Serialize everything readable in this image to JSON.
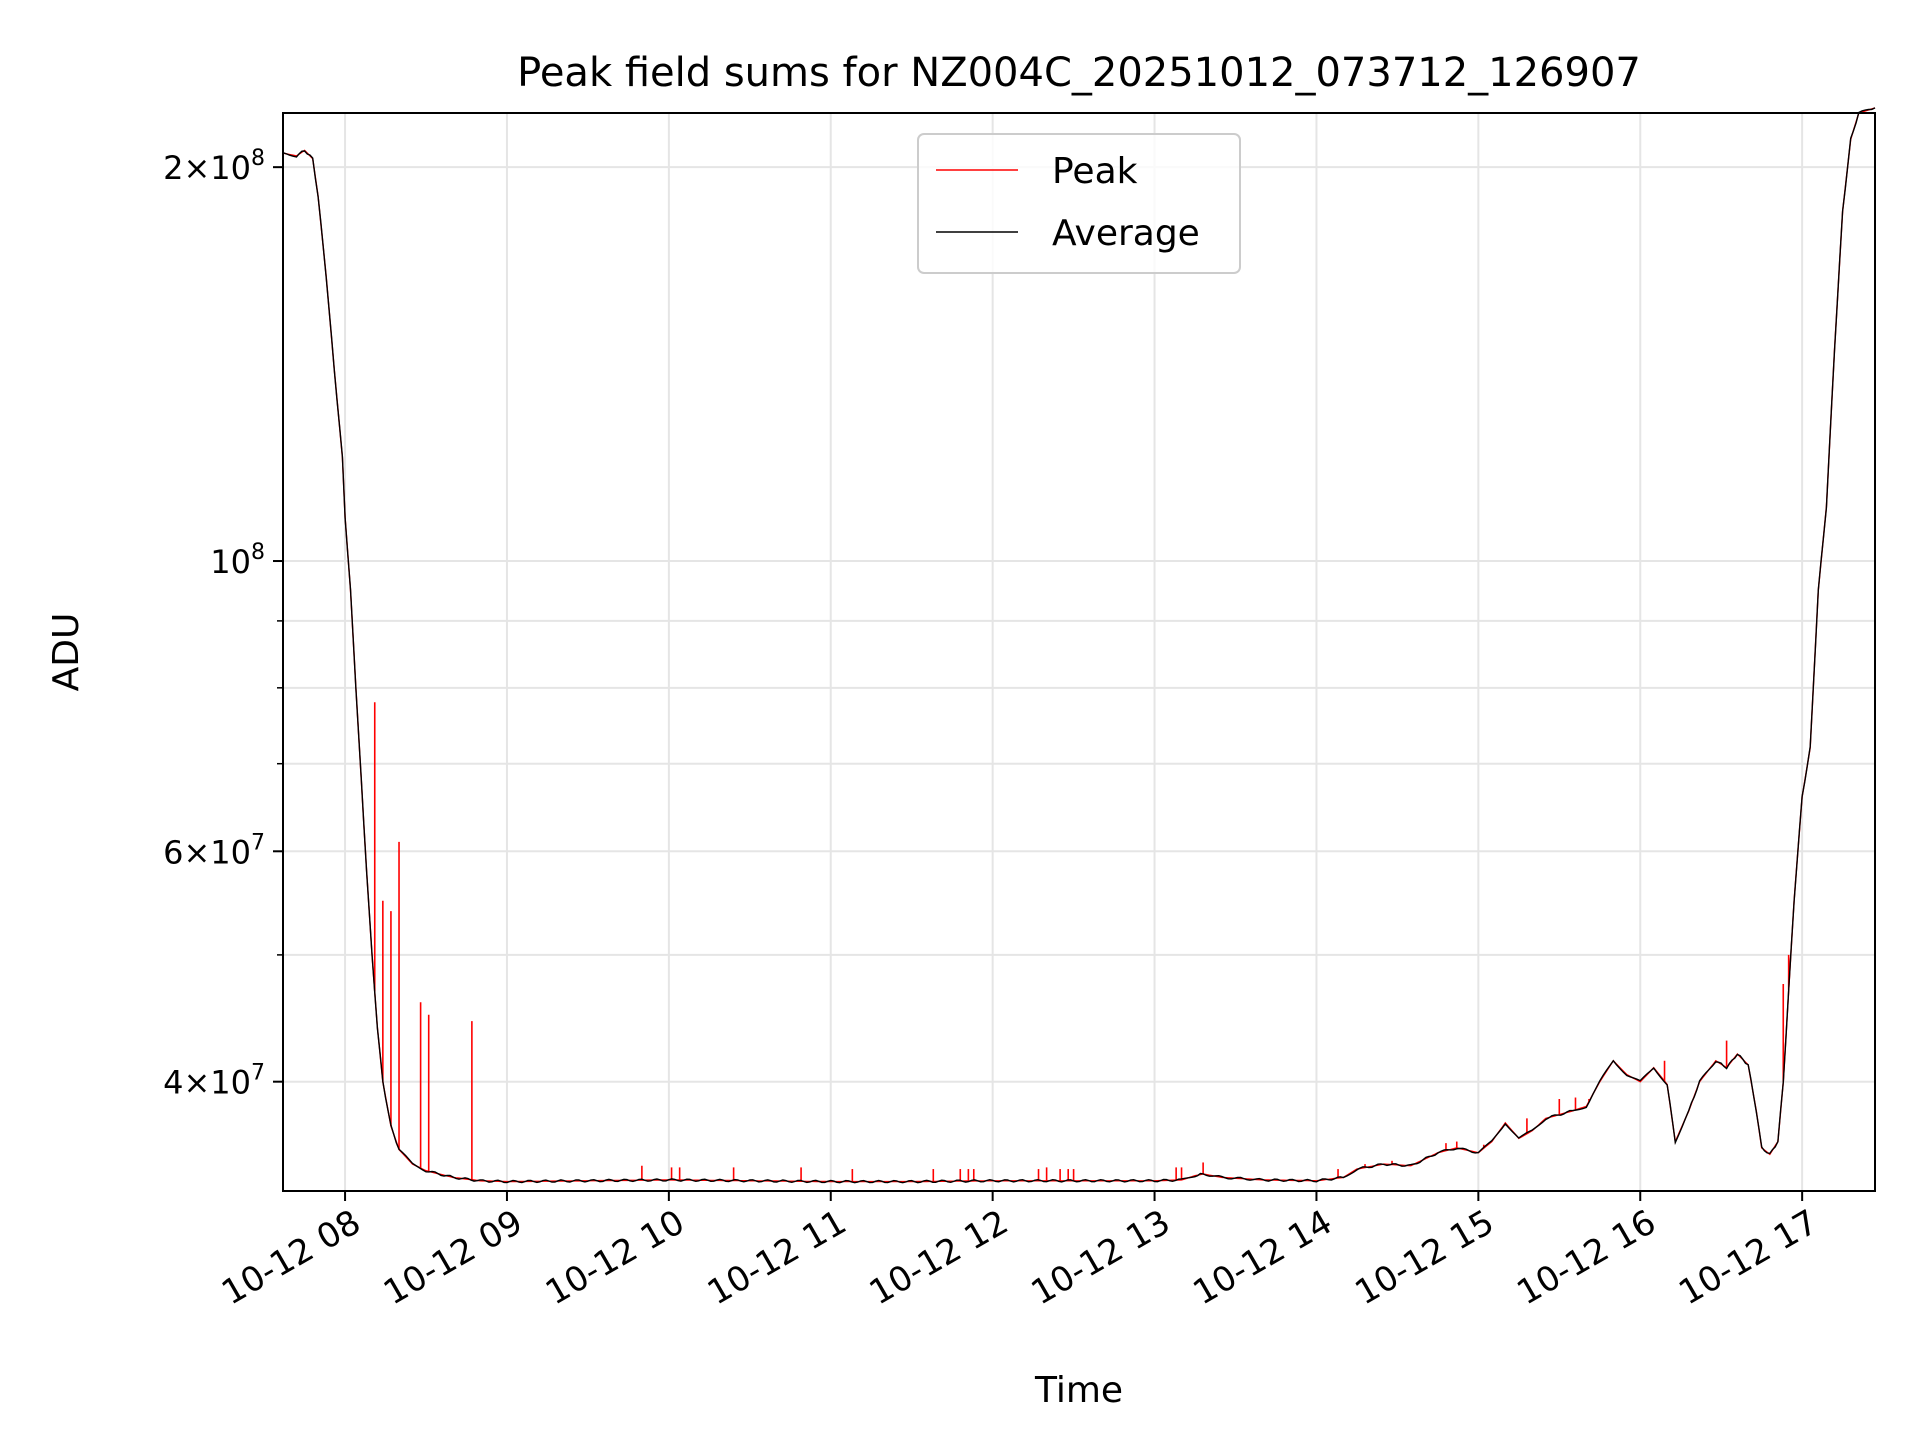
{
  "chart_data": {
    "type": "line",
    "title": "Peak field sums for NZ004C_20251012_073712_126907",
    "xlabel": "Time",
    "ylabel": "ADU",
    "yscale": "log",
    "xlim": [
      "2025-10-12 07:37",
      "2025-10-12 17:27"
    ],
    "ylim": [
      33000000,
      220000000
    ],
    "grid": true,
    "legend": {
      "placement": "upper center",
      "entries": [
        "Peak",
        "Average"
      ]
    },
    "x_ticks": [
      {
        "t": "2025-10-12 08:00",
        "label": "10-12 08"
      },
      {
        "t": "2025-10-12 09:00",
        "label": "10-12 09"
      },
      {
        "t": "2025-10-12 10:00",
        "label": "10-12 10"
      },
      {
        "t": "2025-10-12 11:00",
        "label": "10-12 11"
      },
      {
        "t": "2025-10-12 12:00",
        "label": "10-12 12"
      },
      {
        "t": "2025-10-12 13:00",
        "label": "10-12 13"
      },
      {
        "t": "2025-10-12 14:00",
        "label": "10-12 14"
      },
      {
        "t": "2025-10-12 15:00",
        "label": "10-12 15"
      },
      {
        "t": "2025-10-12 16:00",
        "label": "10-12 16"
      },
      {
        "t": "2025-10-12 17:00",
        "label": "10-12 17"
      }
    ],
    "y_ticks_major": [
      {
        "v": 40000000,
        "mant": "4",
        "exp": "7"
      },
      {
        "v": 60000000,
        "mant": "6",
        "exp": "7"
      },
      {
        "v": 100000000,
        "mant": "",
        "exp": "8"
      },
      {
        "v": 200000000,
        "mant": "2",
        "exp": "8"
      }
    ],
    "y_ticks_minor": [
      50000000,
      70000000,
      80000000,
      90000000
    ],
    "colors": {
      "Peak": "#ff0000",
      "Average": "#000000",
      "grid": "#e5e5e5"
    },
    "series": [
      {
        "name": "Average",
        "points": [
          [
            "2025-10-12 07:37",
            205000000
          ],
          [
            "2025-10-12 07:42",
            204000000
          ],
          [
            "2025-10-12 07:45",
            206000000
          ],
          [
            "2025-10-12 07:48",
            203000000
          ],
          [
            "2025-10-12 07:50",
            190000000
          ],
          [
            "2025-10-12 07:53",
            165000000
          ],
          [
            "2025-10-12 07:56",
            140000000
          ],
          [
            "2025-10-12 07:59",
            120000000
          ],
          [
            "2025-10-12 08:00",
            108000000
          ],
          [
            "2025-10-12 08:02",
            95000000
          ],
          [
            "2025-10-12 08:04",
            80000000
          ],
          [
            "2025-10-12 08:06",
            68000000
          ],
          [
            "2025-10-12 08:08",
            58000000
          ],
          [
            "2025-10-12 08:10",
            50000000
          ],
          [
            "2025-10-12 08:12",
            44000000
          ],
          [
            "2025-10-12 08:14",
            40000000
          ],
          [
            "2025-10-12 08:17",
            37000000
          ],
          [
            "2025-10-12 08:20",
            35500000
          ],
          [
            "2025-10-12 08:25",
            34600000
          ],
          [
            "2025-10-12 08:30",
            34200000
          ],
          [
            "2025-10-12 08:40",
            33800000
          ],
          [
            "2025-10-12 08:50",
            33600000
          ],
          [
            "2025-10-12 09:00",
            33550000
          ],
          [
            "2025-10-12 09:30",
            33600000
          ],
          [
            "2025-10-12 10:00",
            33650000
          ],
          [
            "2025-10-12 10:30",
            33600000
          ],
          [
            "2025-10-12 11:00",
            33550000
          ],
          [
            "2025-10-12 11:30",
            33550000
          ],
          [
            "2025-10-12 12:00",
            33600000
          ],
          [
            "2025-10-12 12:30",
            33600000
          ],
          [
            "2025-10-12 13:00",
            33600000
          ],
          [
            "2025-10-12 13:10",
            33650000
          ],
          [
            "2025-10-12 13:15",
            33900000
          ],
          [
            "2025-10-12 13:18",
            34000000
          ],
          [
            "2025-10-12 13:25",
            33800000
          ],
          [
            "2025-10-12 13:40",
            33650000
          ],
          [
            "2025-10-12 14:00",
            33600000
          ],
          [
            "2025-10-12 14:10",
            33800000
          ],
          [
            "2025-10-12 14:15",
            34300000
          ],
          [
            "2025-10-12 14:25",
            34600000
          ],
          [
            "2025-10-12 14:35",
            34500000
          ],
          [
            "2025-10-12 14:45",
            35300000
          ],
          [
            "2025-10-12 14:52",
            35600000
          ],
          [
            "2025-10-12 15:00",
            35300000
          ],
          [
            "2025-10-12 15:05",
            36000000
          ],
          [
            "2025-10-12 15:10",
            37200000
          ],
          [
            "2025-10-12 15:15",
            36200000
          ],
          [
            "2025-10-12 15:20",
            36700000
          ],
          [
            "2025-10-12 15:25",
            37500000
          ],
          [
            "2025-10-12 15:35",
            38000000
          ],
          [
            "2025-10-12 15:40",
            38300000
          ],
          [
            "2025-10-12 15:45",
            40000000
          ],
          [
            "2025-10-12 15:50",
            41500000
          ],
          [
            "2025-10-12 15:55",
            40500000
          ],
          [
            "2025-10-12 16:00",
            40000000
          ],
          [
            "2025-10-12 16:05",
            41000000
          ],
          [
            "2025-10-12 16:10",
            39800000
          ],
          [
            "2025-10-12 16:13",
            36000000
          ],
          [
            "2025-10-12 16:18",
            38000000
          ],
          [
            "2025-10-12 16:22",
            40000000
          ],
          [
            "2025-10-12 16:28",
            41500000
          ],
          [
            "2025-10-12 16:32",
            41000000
          ],
          [
            "2025-10-12 16:36",
            42000000
          ],
          [
            "2025-10-12 16:40",
            41200000
          ],
          [
            "2025-10-12 16:43",
            38000000
          ],
          [
            "2025-10-12 16:45",
            35600000
          ],
          [
            "2025-10-12 16:48",
            35200000
          ],
          [
            "2025-10-12 16:51",
            36000000
          ],
          [
            "2025-10-12 16:53",
            40000000
          ],
          [
            "2025-10-12 16:55",
            47000000
          ],
          [
            "2025-10-12 16:57",
            55000000
          ],
          [
            "2025-10-12 17:00",
            66000000
          ],
          [
            "2025-10-12 17:03",
            72000000
          ],
          [
            "2025-10-12 17:06",
            95000000
          ],
          [
            "2025-10-12 17:09",
            110000000
          ],
          [
            "2025-10-12 17:12",
            145000000
          ],
          [
            "2025-10-12 17:15",
            185000000
          ],
          [
            "2025-10-12 17:18",
            210000000
          ],
          [
            "2025-10-12 17:21",
            220000000
          ],
          [
            "2025-10-12 17:27",
            222000000
          ]
        ]
      },
      {
        "name": "Peak",
        "spikes": [
          [
            "2025-10-12 07:59",
            120000000
          ],
          [
            "2025-10-12 08:11",
            78000000
          ],
          [
            "2025-10-12 08:14",
            55000000
          ],
          [
            "2025-10-12 08:17",
            54000000
          ],
          [
            "2025-10-12 08:20",
            61000000
          ],
          [
            "2025-10-12 08:28",
            46000000
          ],
          [
            "2025-10-12 08:31",
            45000000
          ],
          [
            "2025-10-12 08:47",
            44500000
          ],
          [
            "2025-10-12 09:50",
            34500000
          ],
          [
            "2025-10-12 10:01",
            34400000
          ],
          [
            "2025-10-12 10:04",
            34400000
          ],
          [
            "2025-10-12 10:24",
            34400000
          ],
          [
            "2025-10-12 10:49",
            34400000
          ],
          [
            "2025-10-12 11:08",
            34300000
          ],
          [
            "2025-10-12 11:38",
            34300000
          ],
          [
            "2025-10-12 11:48",
            34300000
          ],
          [
            "2025-10-12 11:51",
            34300000
          ],
          [
            "2025-10-12 11:53",
            34300000
          ],
          [
            "2025-10-12 12:17",
            34300000
          ],
          [
            "2025-10-12 12:20",
            34400000
          ],
          [
            "2025-10-12 12:25",
            34300000
          ],
          [
            "2025-10-12 12:28",
            34300000
          ],
          [
            "2025-10-12 12:30",
            34300000
          ],
          [
            "2025-10-12 13:08",
            34400000
          ],
          [
            "2025-10-12 13:10",
            34400000
          ],
          [
            "2025-10-12 13:18",
            34700000
          ],
          [
            "2025-10-12 14:08",
            34300000
          ],
          [
            "2025-10-12 14:18",
            34600000
          ],
          [
            "2025-10-12 14:28",
            34800000
          ],
          [
            "2025-10-12 14:48",
            35900000
          ],
          [
            "2025-10-12 14:52",
            36000000
          ],
          [
            "2025-10-12 15:02",
            35800000
          ],
          [
            "2025-10-12 15:18",
            37500000
          ],
          [
            "2025-10-12 15:30",
            38800000
          ],
          [
            "2025-10-12 15:36",
            38900000
          ],
          [
            "2025-10-12 15:41",
            38800000
          ],
          [
            "2025-10-12 16:09",
            41500000
          ],
          [
            "2025-10-12 16:32",
            43000000
          ],
          [
            "2025-10-12 16:53",
            47500000
          ],
          [
            "2025-10-12 16:55",
            50000000
          ]
        ]
      }
    ]
  }
}
